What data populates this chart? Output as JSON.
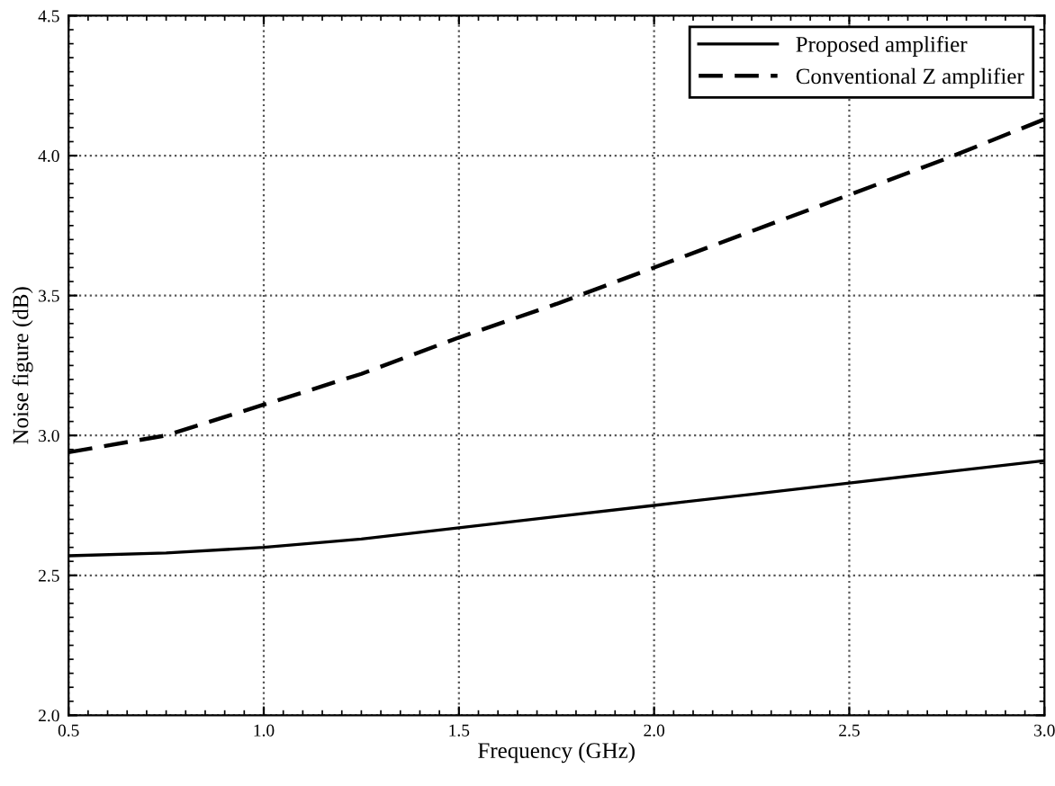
{
  "chart_data": {
    "type": "line",
    "xlabel": "Frequency (GHz)",
    "ylabel": "Noise figure (dB)",
    "x": [
      0.5,
      0.75,
      1.0,
      1.25,
      1.5,
      1.75,
      2.0,
      2.25,
      2.5,
      2.75,
      3.0
    ],
    "series": [
      {
        "name": "Proposed amplifier",
        "color": "#000000",
        "line_style": "solid",
        "values": [
          2.57,
          2.58,
          2.6,
          2.63,
          2.67,
          2.71,
          2.75,
          2.79,
          2.83,
          2.87,
          2.91
        ]
      },
      {
        "name": "Conventional Z amplifier",
        "color": "#000000",
        "line_style": "dashed",
        "values": [
          2.94,
          3.0,
          3.11,
          3.22,
          3.35,
          3.47,
          3.6,
          3.73,
          3.86,
          3.99,
          4.13
        ]
      }
    ],
    "xlim": [
      0.5,
      3.0
    ],
    "xticks": [
      {
        "value": 0.5,
        "label": "0.5"
      },
      {
        "value": 1.0,
        "label": "1.0"
      },
      {
        "value": 1.5,
        "label": "1.5"
      },
      {
        "value": 2.0,
        "label": "2.0"
      },
      {
        "value": 2.5,
        "label": "2.5"
      },
      {
        "value": 3.0,
        "label": "3.0"
      }
    ],
    "ylim": [
      2.0,
      4.5
    ],
    "yticks": [
      {
        "value": 2.0,
        "label": "2.0"
      },
      {
        "value": 2.5,
        "label": "2.5"
      },
      {
        "value": 3.0,
        "label": "3.0"
      },
      {
        "value": 3.5,
        "label": "3.5"
      },
      {
        "value": 4.0,
        "label": "4.0"
      },
      {
        "value": 4.5,
        "label": "4.5"
      }
    ],
    "grid": true,
    "legend": "top right",
    "marker": "none"
  }
}
